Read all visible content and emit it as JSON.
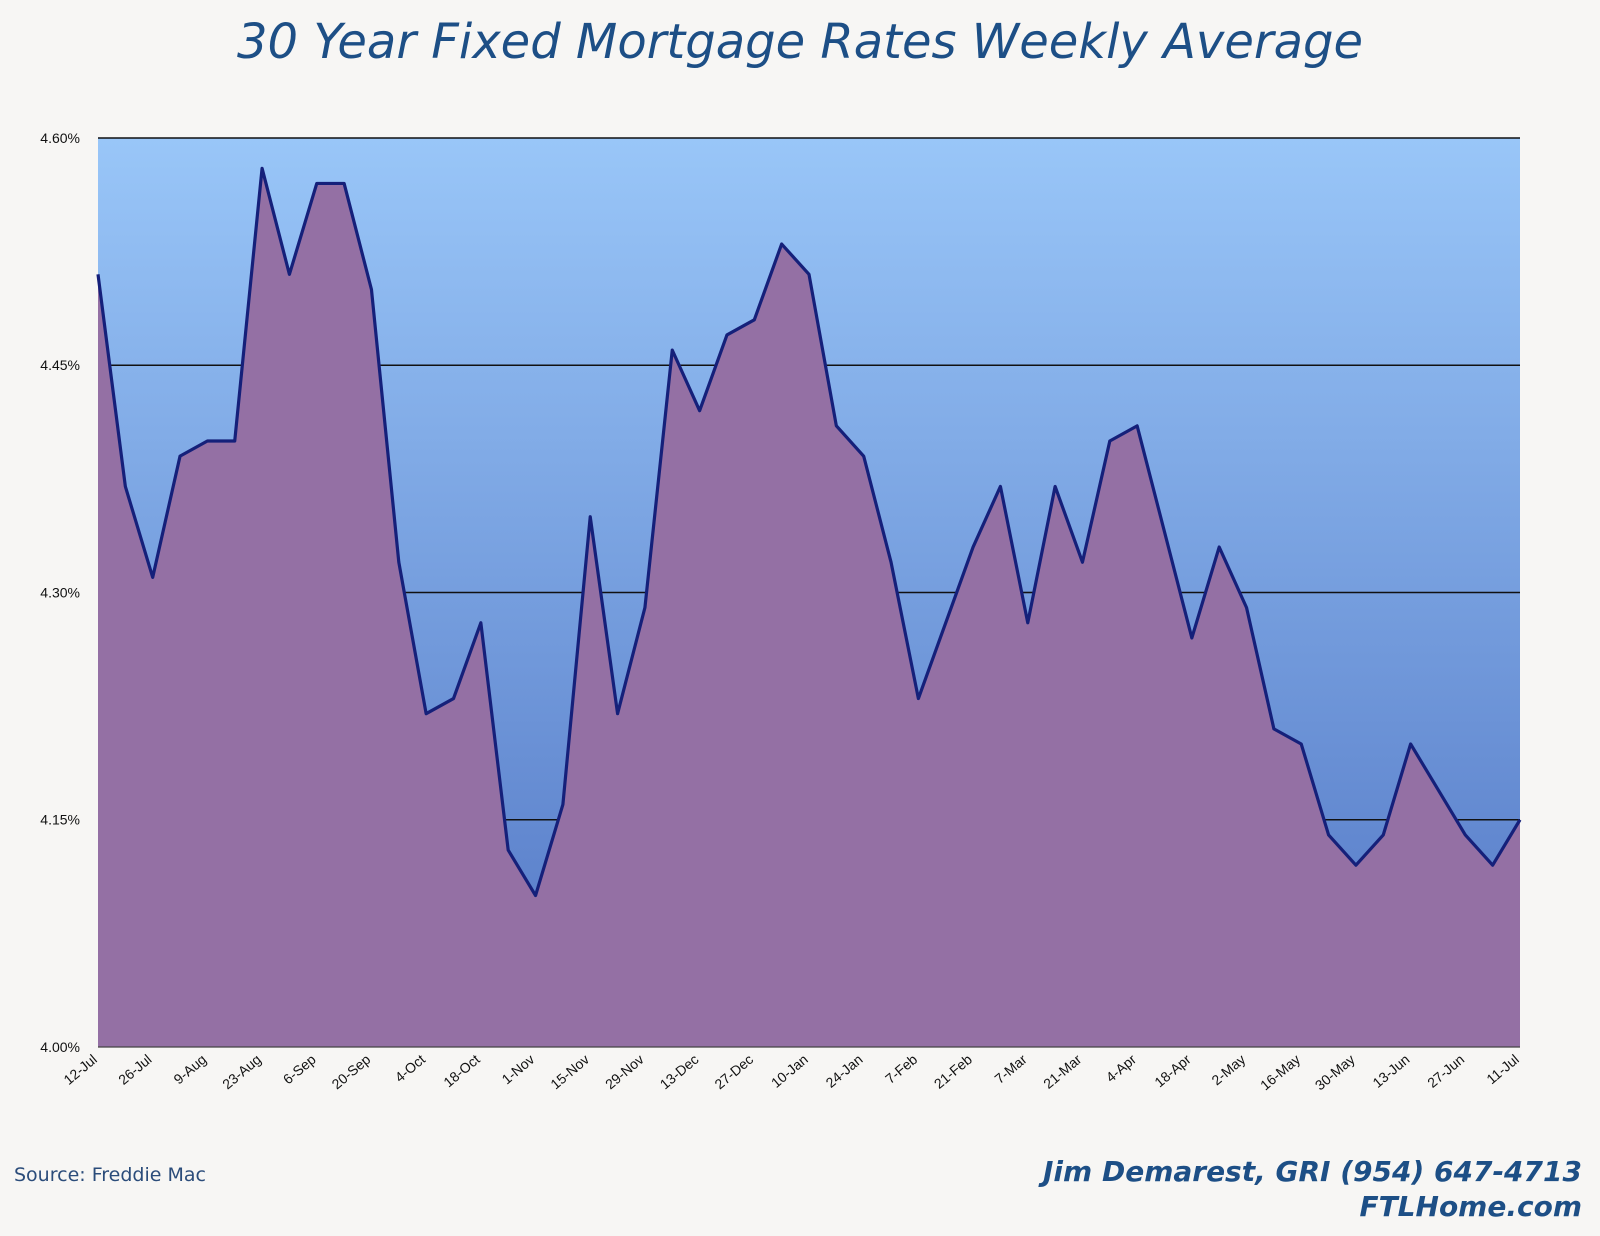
{
  "chart_data": {
    "type": "area",
    "title": "30 Year Fixed Mortgage Rates Weekly Average",
    "xlabel": "",
    "ylabel": "",
    "ylim": [
      4.0,
      4.6
    ],
    "yticks": [
      "4.00%",
      "4.15%",
      "4.30%",
      "4.45%",
      "4.60%"
    ],
    "ytick_values": [
      4.0,
      4.15,
      4.3,
      4.45,
      4.6
    ],
    "xtick_labels": [
      "12-Jul",
      "26-Jul",
      "9-Aug",
      "23-Aug",
      "6-Sep",
      "20-Sep",
      "4-Oct",
      "18-Oct",
      "1-Nov",
      "15-Nov",
      "29-Nov",
      "13-Dec",
      "27-Dec",
      "10-Jan",
      "24-Jan",
      "7-Feb",
      "21-Feb",
      "7-Mar",
      "21-Mar",
      "4-Apr",
      "18-Apr",
      "2-May",
      "16-May",
      "30-May",
      "13-Jun",
      "27-Jun",
      "11-Jul"
    ],
    "grid": true,
    "colors": {
      "line": "#15207a",
      "fill": "#9470a4",
      "bg_top": "#99c6f8",
      "bg_bottom": "#5276c4",
      "gridline": "#111111"
    },
    "values": [
      4.51,
      4.37,
      4.31,
      4.39,
      4.4,
      4.4,
      4.58,
      4.51,
      4.57,
      4.57,
      4.5,
      4.32,
      4.22,
      4.23,
      4.28,
      4.13,
      4.1,
      4.16,
      4.35,
      4.22,
      4.29,
      4.46,
      4.42,
      4.47,
      4.48,
      4.53,
      4.51,
      4.41,
      4.39,
      4.32,
      4.23,
      4.28,
      4.33,
      4.37,
      4.28,
      4.37,
      4.32,
      4.4,
      4.41,
      4.34,
      4.27,
      4.33,
      4.29,
      4.21,
      4.2,
      4.14,
      4.12,
      4.14,
      4.2,
      4.17,
      4.14,
      4.12,
      4.15
    ]
  },
  "source": "Source: Freddie Mac",
  "credit": {
    "name": "Jim Demarest, GRI (954) 647-4713",
    "site": "FTLHome.com"
  }
}
